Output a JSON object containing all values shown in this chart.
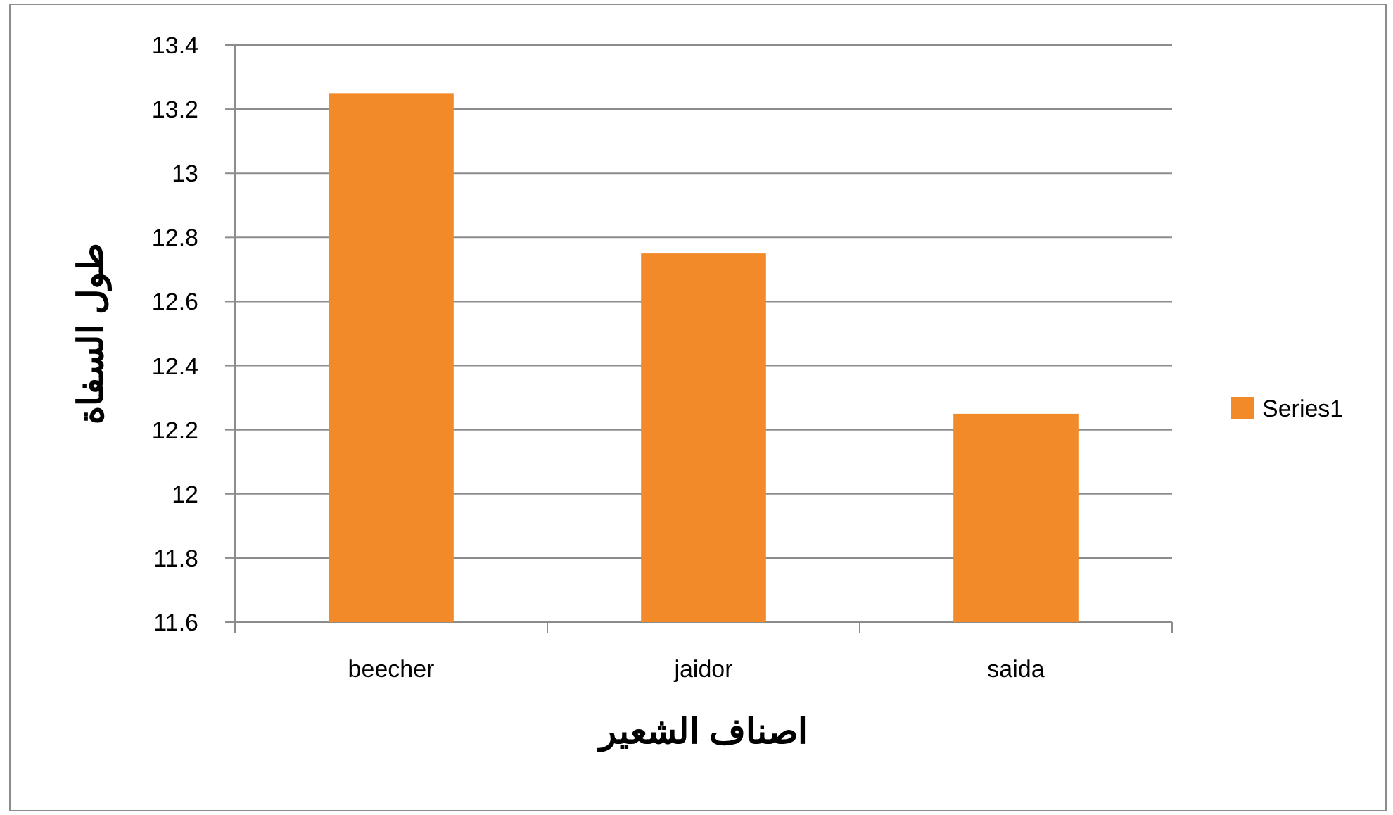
{
  "chart_data": {
    "type": "bar",
    "xlabel": "اصناف الشعير",
    "ylabel": "طول السفاة",
    "categories": [
      "beecher",
      "jaidor",
      "saida"
    ],
    "series": [
      {
        "name": "Series1",
        "color": "#f28a2a",
        "values": [
          13.25,
          12.75,
          12.25
        ]
      }
    ],
    "ylim": [
      11.6,
      13.4
    ],
    "yticks": [
      11.6,
      11.8,
      12,
      12.2,
      12.4,
      12.6,
      12.8,
      13,
      13.2,
      13.4
    ],
    "grid": "y",
    "legend": "right"
  }
}
